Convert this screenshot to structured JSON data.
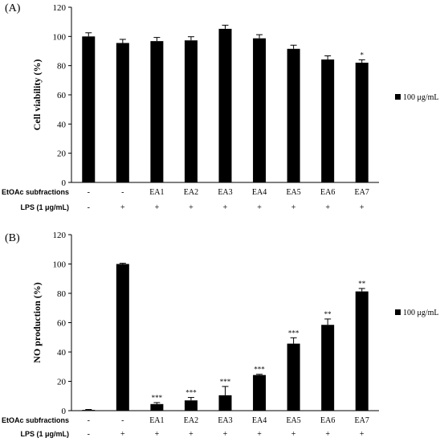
{
  "chart_data": [
    {
      "type": "bar",
      "panel_label": "(A)",
      "ylabel": "Cell viability (%)",
      "ylim": [
        0,
        120
      ],
      "yticks": [
        0,
        20,
        40,
        60,
        80,
        100,
        120
      ],
      "legend": {
        "label": "100 μg/mL",
        "position": "right",
        "color": "#000000"
      },
      "rows": [
        {
          "label": "EtOAc subfractions",
          "values": [
            "-",
            "-",
            "EA1",
            "EA2",
            "EA3",
            "EA4",
            "EA5",
            "EA6",
            "EA7"
          ]
        },
        {
          "label": "LPS (1 μg/mL)",
          "values": [
            "-",
            "+",
            "+",
            "+",
            "+",
            "+",
            "+",
            "+",
            "+"
          ]
        }
      ],
      "series": [
        {
          "name": "100 μg/mL",
          "values": [
            100,
            95.5,
            96.8,
            97.3,
            105.2,
            98.7,
            91.5,
            84.2,
            82.0
          ],
          "errors": [
            2.5,
            2.5,
            2.5,
            2.5,
            2.5,
            2.5,
            2.5,
            2.5,
            2.0
          ],
          "significance": [
            "",
            "",
            "",
            "",
            "",
            "",
            "",
            "",
            "*"
          ]
        }
      ]
    },
    {
      "type": "bar",
      "panel_label": "(B)",
      "ylabel": "NO production (%)",
      "ylim": [
        0,
        120
      ],
      "yticks": [
        0,
        20,
        40,
        60,
        80,
        100,
        120
      ],
      "legend": {
        "label": "100 μg/mL",
        "position": "right",
        "color": "#000000"
      },
      "rows": [
        {
          "label": "EtOAc subfractions",
          "values": [
            "-",
            "-",
            "EA1",
            "EA2",
            "EA3",
            "EA4",
            "EA5",
            "EA6",
            "EA7"
          ]
        },
        {
          "label": "LPS (1 μg/mL)",
          "values": [
            "-",
            "+",
            "+",
            "+",
            "+",
            "+",
            "+",
            "+",
            "+"
          ]
        }
      ],
      "series": [
        {
          "name": "100 μg/mL",
          "values": [
            0.5,
            100,
            4.5,
            7.0,
            10.5,
            24.3,
            45.7,
            58.5,
            81.3
          ],
          "errors": [
            0.3,
            0.5,
            1.0,
            2.0,
            6.0,
            0.5,
            4.0,
            4.0,
            2.0
          ],
          "significance": [
            "",
            "",
            "***",
            "***",
            "***",
            "***",
            "***",
            "**",
            "**"
          ]
        }
      ]
    }
  ]
}
